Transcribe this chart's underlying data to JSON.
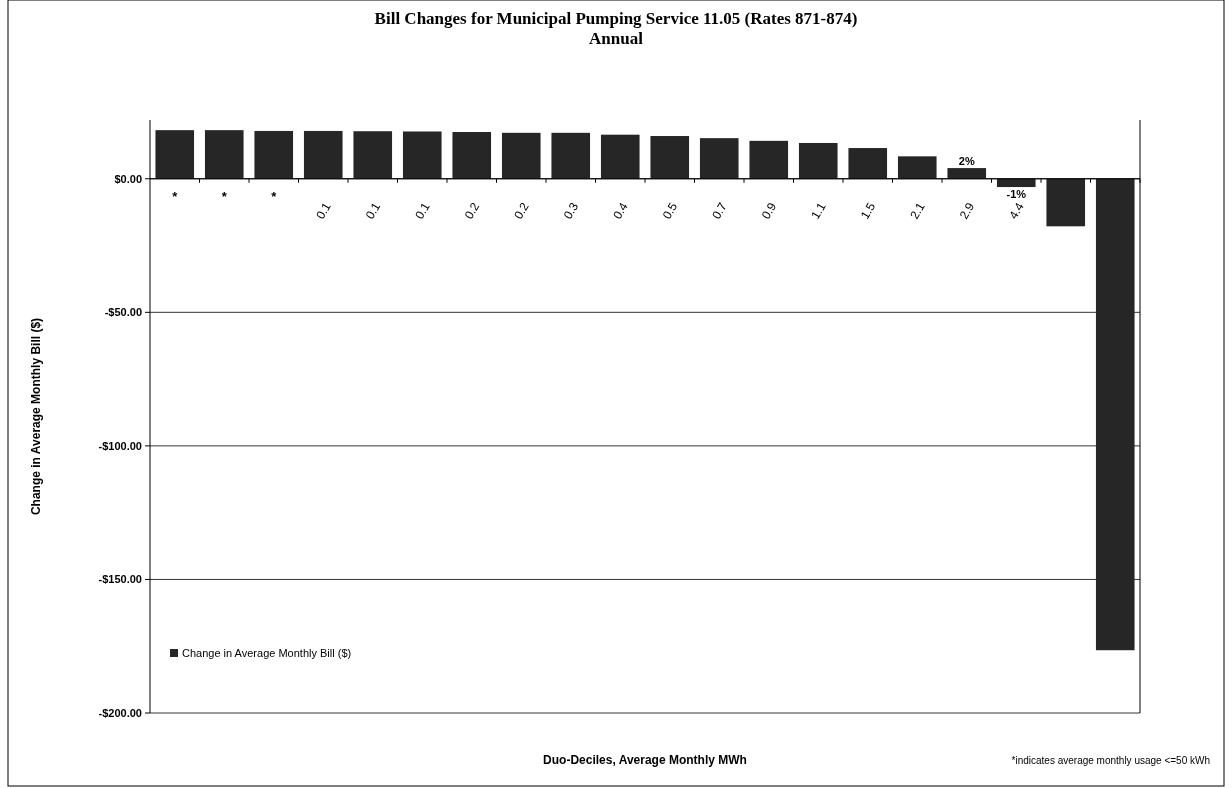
{
  "chart_data": {
    "type": "bar",
    "title": "Bill Changes for Municipal Pumping Service 11.05 (Rates 871-874)",
    "subtitle": "Annual",
    "xlabel": "Duo-Deciles, Average Monthly MWh",
    "ylabel": "Change in Average Monthly Bill ($)",
    "categories": [
      "*",
      "*",
      "*",
      "0.1",
      "0.1",
      "0.1",
      "0.2",
      "0.2",
      "0.3",
      "0.4",
      "0.5",
      "0.7",
      "0.9",
      "1.1",
      "1.5",
      "2.1",
      "2.9",
      "4.4",
      null,
      null
    ],
    "series": [
      {
        "name": "Change in Average Monthly Bill ($)",
        "color": "#262626",
        "values": [
          18.2,
          18.2,
          17.9,
          17.9,
          17.8,
          17.7,
          17.5,
          17.2,
          17.2,
          16.5,
          16.0,
          15.2,
          14.2,
          13.4,
          11.5,
          8.4,
          4.0,
          -3.1,
          -17.8,
          -176.5
        ]
      }
    ],
    "ylim": [
      -200,
      22
    ],
    "yticks": [
      {
        "value": -200,
        "label": "-$200.00"
      },
      {
        "value": -150,
        "label": "-$150.00"
      },
      {
        "value": -100,
        "label": "-$100.00"
      },
      {
        "value": -50,
        "label": "-$50.00"
      },
      {
        "value": 0,
        "label": "$0.00"
      }
    ],
    "grid": "y",
    "legend": "bottom left",
    "annotations": [
      {
        "text": "2%",
        "x": "2.9",
        "y": 4.0
      },
      {
        "text": "-1%",
        "x": "4.4",
        "y": -3.1
      },
      "*indicates average monthly usage <=50 kWh"
    ]
  }
}
